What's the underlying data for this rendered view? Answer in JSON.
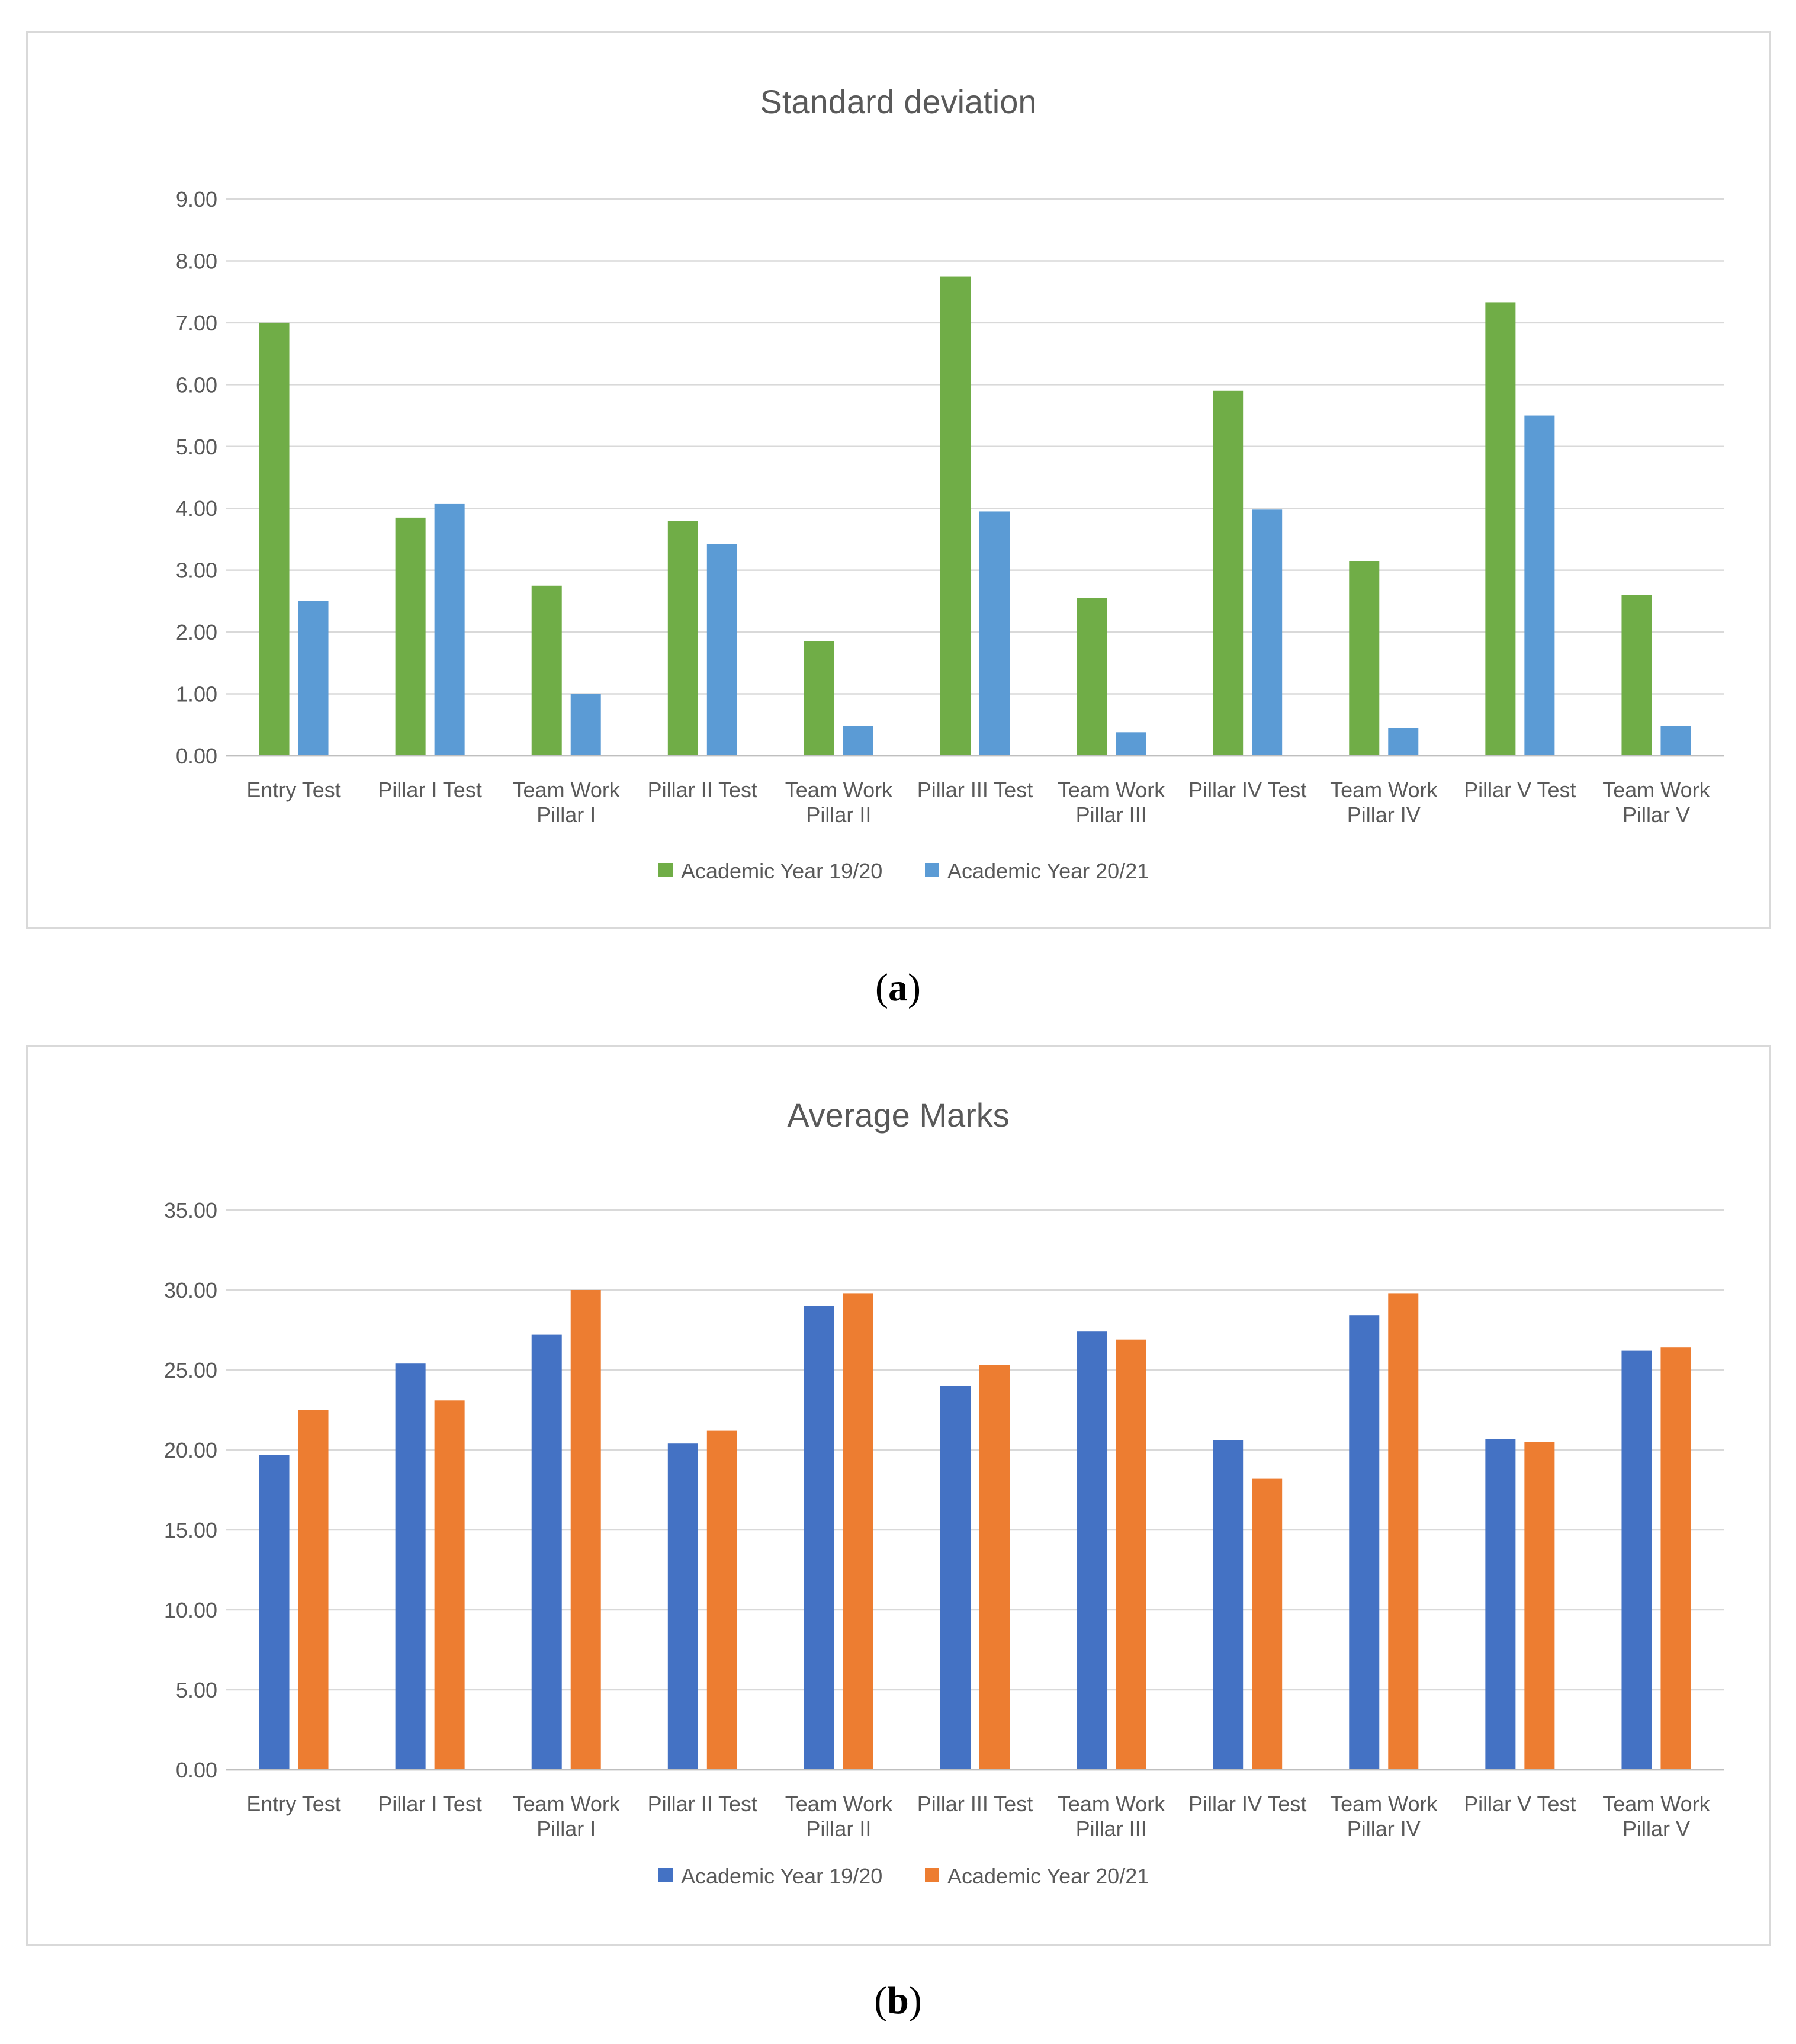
{
  "captions": [
    "(a)",
    "(b)"
  ],
  "chart_data": [
    {
      "type": "bar",
      "title": "Standard deviation",
      "xlabel": "",
      "ylabel": "",
      "ylim": [
        0,
        9
      ],
      "yticks": [
        "0.00",
        "1.00",
        "2.00",
        "3.00",
        "4.00",
        "5.00",
        "6.00",
        "7.00",
        "8.00",
        "9.00"
      ],
      "ystep": 1,
      "grid": true,
      "legend_position": "bottom",
      "categories": [
        [
          "Entry Test"
        ],
        [
          "Pillar I Test"
        ],
        [
          "Team Work",
          "Pillar I"
        ],
        [
          "Pillar II Test"
        ],
        [
          "Team Work",
          "Pillar II"
        ],
        [
          "Pillar III Test"
        ],
        [
          "Team Work",
          "Pillar III"
        ],
        [
          "Pillar IV Test"
        ],
        [
          "Team Work",
          "Pillar IV"
        ],
        [
          "Pillar V Test"
        ],
        [
          "Team Work",
          "Pillar V"
        ]
      ],
      "series": [
        {
          "name": "Academic Year 19/20",
          "color": "#70ad47",
          "values": [
            7.0,
            3.85,
            2.75,
            3.8,
            1.85,
            7.75,
            2.55,
            5.9,
            3.15,
            7.33,
            2.6
          ]
        },
        {
          "name": "Academic Year 20/21",
          "color": "#5b9bd5",
          "values": [
            2.5,
            4.07,
            1.0,
            3.42,
            0.48,
            3.95,
            0.38,
            3.98,
            0.45,
            5.5,
            0.48
          ]
        }
      ]
    },
    {
      "type": "bar",
      "title": "Average Marks",
      "xlabel": "",
      "ylabel": "",
      "ylim": [
        0,
        35
      ],
      "yticks": [
        "0.00",
        "5.00",
        "10.00",
        "15.00",
        "20.00",
        "25.00",
        "30.00",
        "35.00"
      ],
      "ystep": 5,
      "grid": true,
      "legend_position": "bottom",
      "categories": [
        [
          "Entry Test"
        ],
        [
          "Pillar I Test"
        ],
        [
          "Team Work",
          "Pillar I"
        ],
        [
          "Pillar II Test"
        ],
        [
          "Team Work",
          "Pillar II"
        ],
        [
          "Pillar III Test"
        ],
        [
          "Team Work",
          "Pillar III"
        ],
        [
          "Pillar IV Test"
        ],
        [
          "Team Work",
          "Pillar IV"
        ],
        [
          "Pillar V Test"
        ],
        [
          "Team Work",
          "Pillar V"
        ]
      ],
      "series": [
        {
          "name": "Academic Year 19/20",
          "color": "#4472c4",
          "values": [
            19.7,
            25.4,
            27.2,
            20.4,
            29.0,
            24.0,
            27.4,
            20.6,
            28.4,
            20.7,
            26.2
          ]
        },
        {
          "name": "Academic Year 20/21",
          "color": "#ed7d31",
          "values": [
            22.5,
            23.1,
            30.0,
            21.2,
            29.8,
            25.3,
            26.9,
            18.2,
            29.8,
            20.5,
            26.4
          ]
        }
      ]
    }
  ]
}
